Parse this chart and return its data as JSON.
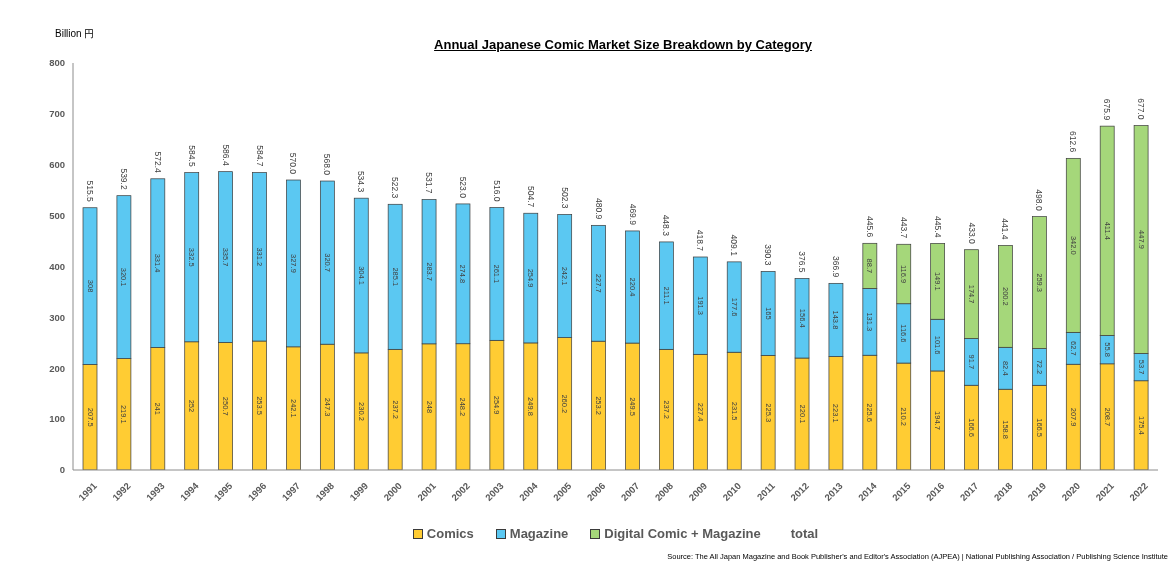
{
  "chart_data": {
    "type": "bar",
    "title": "Annual Japanese Comic Market Size Breakdown by Category",
    "ylabel": "Billion 円",
    "categories": [
      "1991",
      "1992",
      "1993",
      "1994",
      "1995",
      "1996",
      "1997",
      "1998",
      "1999",
      "2000",
      "2001",
      "2002",
      "2003",
      "2004",
      "2005",
      "2006",
      "2007",
      "2008",
      "2009",
      "2010",
      "2011",
      "2012",
      "2013",
      "2014",
      "2015",
      "2016",
      "2017",
      "2018",
      "2019",
      "2020",
      "2021",
      "2022"
    ],
    "series": [
      {
        "name": "Comics",
        "color": "#ffcc33",
        "values": [
          207.5,
          219.1,
          241,
          252,
          250.7,
          253.5,
          242.1,
          247.3,
          230.2,
          237.2,
          248,
          248.2,
          254.9,
          249.8,
          260.2,
          253.2,
          249.5,
          237.2,
          227.4,
          231.5,
          225.3,
          220.1,
          223.1,
          225.6,
          210.2,
          194.7,
          166.6,
          158.8,
          166.5,
          207.9,
          208.7,
          175.4
        ],
        "value_labels": [
          "207.5",
          "219.1",
          "241",
          "252",
          "250.7",
          "253.5",
          "242.1",
          "247.3",
          "230.2",
          "237.2",
          "248",
          "248.2",
          "254.9",
          "249.8",
          "260.2",
          "253.2",
          "249.5",
          "237.2",
          "227.4",
          "231.5",
          "225.3",
          "220.1",
          "223.1",
          "225.6",
          "210.2",
          "194.7",
          "166.6",
          "158.8",
          "166.5",
          "207.9",
          "208.7",
          "175.4"
        ]
      },
      {
        "name": "Magazine",
        "color": "#5bc8f2",
        "values": [
          308,
          320.1,
          331.4,
          332.5,
          335.7,
          331.2,
          327.9,
          320.7,
          304.1,
          285.1,
          283.7,
          274.8,
          261.1,
          254.9,
          242.1,
          227.7,
          220.4,
          211.1,
          191.3,
          177.6,
          165,
          156.4,
          143.8,
          131.3,
          116.6,
          101.6,
          91.7,
          82.4,
          72.2,
          62.7,
          55.8,
          53.7
        ],
        "value_labels": [
          "308",
          "320.1",
          "331.4",
          "332.5",
          "335.7",
          "331.2",
          "327.9",
          "320.7",
          "304.1",
          "285.1",
          "283.7",
          "274.8",
          "261.1",
          "254.9",
          "242.1",
          "227.7",
          "220.4",
          "211.1",
          "191.3",
          "177.6",
          "165",
          "156.4",
          "143.8",
          "131.3",
          "116.6",
          "101.6",
          "91.7",
          "82.4",
          "72.2",
          "62.7",
          "55.8",
          "53.7"
        ]
      },
      {
        "name": "Digital Comic + Magazine",
        "color": "#a5d77a",
        "values": [
          null,
          null,
          null,
          null,
          null,
          null,
          null,
          null,
          null,
          null,
          null,
          null,
          null,
          null,
          null,
          null,
          null,
          null,
          null,
          null,
          null,
          null,
          null,
          88.7,
          116.9,
          149.1,
          174.7,
          200.2,
          259.3,
          342,
          411.4,
          447.9
        ],
        "value_labels": [
          null,
          null,
          null,
          null,
          null,
          null,
          null,
          null,
          null,
          null,
          null,
          null,
          null,
          null,
          null,
          null,
          null,
          null,
          null,
          null,
          null,
          null,
          null,
          "88.7",
          "116.9",
          "149.1",
          "174.7",
          "200.2",
          "259.3",
          "342.0",
          "411.4",
          "447.9"
        ]
      }
    ],
    "stacked": true,
    "ylim": [
      0,
      800
    ],
    "yticks": [
      0,
      100,
      200,
      300,
      400,
      500,
      600,
      700,
      800
    ],
    "totals": [
      "515.5",
      "539.2",
      "572.4",
      "584.5",
      "586.4",
      "584.7",
      "570.0",
      "568.0",
      "534.3",
      "522.3",
      "531.7",
      "523.0",
      "516.0",
      "504.7",
      "502.3",
      "480.9",
      "469.9",
      "448.3",
      "418.7",
      "409.1",
      "390.3",
      "376.5",
      "366.9",
      "445.6",
      "443.7",
      "445.4",
      "433.0",
      "441.4",
      "498.0",
      "612.6",
      "675.9",
      "677.0"
    ],
    "legend": "bottom",
    "annotations": [
      "total",
      "Source: The All Japan Magazine and Book Publisher's and Editor's Association (AJPEA) | National Publishing Association / Publishing Science Institute"
    ]
  }
}
